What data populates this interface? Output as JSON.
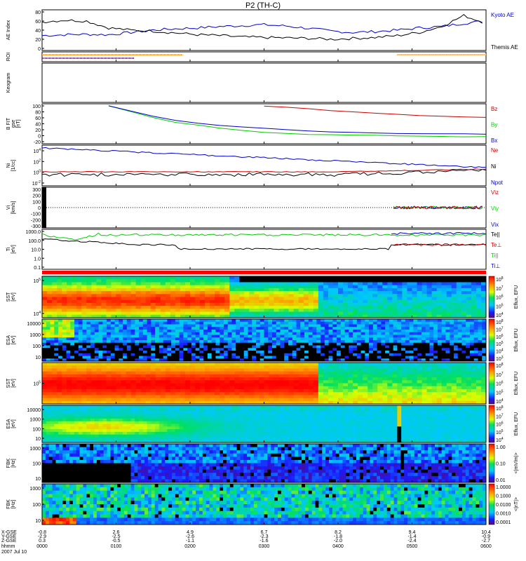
{
  "title": "P2 (TH-C)",
  "colors": {
    "blue": "#0000cc",
    "red": "#cc0000",
    "green": "#00cc00",
    "black": "#000000",
    "orange": "#ff8800",
    "purple": "#330066"
  },
  "chart_data": [
    {
      "type": "line",
      "panel": "ae",
      "ylabel": "AE Index",
      "yticks": [
        "80",
        "60",
        "40",
        "20",
        "0"
      ],
      "ylim": [
        0,
        80
      ],
      "x_hours": [
        0,
        0.3,
        0.6,
        0.9,
        1.2,
        1.5,
        1.8,
        2.1,
        2.4,
        2.7,
        3.0,
        3.3,
        3.6,
        3.9,
        4.2,
        4.5,
        4.8,
        5.1,
        5.4,
        5.7,
        6.0
      ],
      "series": [
        {
          "name": "Kyoto AE",
          "color": "blue",
          "values": [
            28,
            30,
            31,
            30,
            35,
            40,
            43,
            45,
            48,
            50,
            52,
            49,
            44,
            38,
            35,
            37,
            40,
            45,
            48,
            55,
            60
          ]
        },
        {
          "name": "Themis AE",
          "color": "black",
          "values": [
            58,
            62,
            60,
            45,
            40,
            38,
            34,
            30,
            28,
            25,
            24,
            23,
            22,
            20,
            22,
            24,
            28,
            35,
            48,
            72,
            55
          ]
        }
      ],
      "legend": [
        "Kyoto AE",
        "Themis AE"
      ]
    },
    {
      "type": "bar",
      "panel": "roi",
      "ylabel": "ROI",
      "segments": [
        {
          "color": "orange",
          "start": 0.0,
          "end": 1.9,
          "row": 0
        },
        {
          "color": "purple",
          "start": 0.0,
          "end": 1.25,
          "row": 1
        },
        {
          "color": "orange",
          "start": 4.8,
          "end": 6.0,
          "row": 0
        }
      ]
    },
    {
      "type": "line",
      "panel": "kgm",
      "ylabel": "Keogram",
      "series": []
    },
    {
      "type": "line",
      "panel": "bfit",
      "ylabel": "B FIT\ngse\n[nT]",
      "yticks": [
        "100",
        "80",
        "60",
        "40",
        "20",
        "0",
        "-20"
      ],
      "ylim": [
        -20,
        100
      ],
      "x_hours": [
        0.9,
        1.2,
        1.5,
        1.8,
        2.1,
        2.4,
        2.7,
        3.0,
        3.3,
        3.6,
        3.9,
        4.2,
        4.5,
        4.8,
        5.1,
        5.4,
        5.7,
        6.0
      ],
      "series": [
        {
          "name": "Bz",
          "color": "red",
          "values": [
            null,
            null,
            null,
            null,
            null,
            null,
            null,
            100,
            95,
            90,
            85,
            80,
            76,
            72,
            68,
            65,
            63,
            62
          ]
        },
        {
          "name": "By",
          "color": "green",
          "values": [
            100,
            80,
            60,
            45,
            35,
            25,
            18,
            12,
            8,
            5,
            3,
            2,
            1,
            0,
            -1,
            -2,
            -3,
            -4
          ]
        },
        {
          "name": "Bx",
          "color": "blue",
          "values": [
            100,
            82,
            65,
            52,
            42,
            35,
            29,
            24,
            20,
            16,
            13,
            11,
            9,
            8,
            7,
            6,
            6,
            5
          ]
        }
      ],
      "legend": [
        "Bz",
        "By",
        "Bx"
      ]
    },
    {
      "type": "line",
      "panel": "ni",
      "ylabel": "Ni\n[1/cc]",
      "ytick_labels": [
        "10^4",
        "10^2",
        "10^0",
        "10^-2"
      ],
      "series": [
        {
          "name": "Ne",
          "color": "red"
        },
        {
          "name": "Ni",
          "color": "blue"
        },
        {
          "name": "Npot",
          "color": "black"
        }
      ],
      "legend": [
        "Ne",
        "Ni",
        "Npot"
      ]
    },
    {
      "type": "line",
      "panel": "vi",
      "ylabel": "Vi\n[km/s]",
      "yticks": [
        "300",
        "200",
        "100",
        "0",
        "-100",
        "-200",
        "-300"
      ],
      "ylim": [
        -300,
        300
      ],
      "legend": [
        "Viz",
        "Viy",
        "Vix"
      ]
    },
    {
      "type": "line",
      "panel": "ti",
      "ylabel": "Ti\n[eV]",
      "yticks": [
        "1000.0",
        "100.0",
        "10.0",
        "1.0",
        "0.1"
      ],
      "legend": [
        "Te||",
        "Te⊥",
        "Ti||",
        "Ti⊥"
      ]
    },
    {
      "type": "heatmap",
      "panel": "sst1",
      "ylabel": "SST\n[eV]",
      "ytick_labels": [
        "10^5",
        "10^4"
      ],
      "colorbar_label": "Eflux, EFU",
      "colorbar_ticks": [
        "10^8",
        "10^7",
        "10^6",
        "10^5",
        "10^4"
      ]
    },
    {
      "type": "heatmap",
      "panel": "esa1",
      "ylabel": "ESA\n[eV]",
      "yticks": [
        "10000",
        "1000",
        "100",
        "10"
      ],
      "colorbar_label": "Eflux, EFU",
      "colorbar_ticks": [
        "10^8",
        "10^7",
        "10^6",
        "10^5",
        "10^4",
        "10^3"
      ]
    },
    {
      "type": "heatmap",
      "panel": "sst2",
      "ylabel": "SST\n[eV]",
      "ytick_labels": [
        "10^5"
      ],
      "colorbar_label": "Eflux, EFU",
      "colorbar_ticks": [
        "10^8",
        "10^7",
        "10^6",
        "10^5",
        "10^4"
      ]
    },
    {
      "type": "heatmap",
      "panel": "esa2",
      "ylabel": "ESA\n[eV]",
      "yticks": [
        "10000",
        "1000",
        "100",
        "10"
      ],
      "colorbar_label": "Eflux, EFU",
      "colorbar_ticks": [
        "10^8",
        "10^7",
        "10^6",
        "10^5",
        "10^4"
      ]
    },
    {
      "type": "heatmap",
      "panel": "fbk1",
      "ylabel": "FBK\n[Hz]",
      "yticks": [
        "1000",
        "100",
        "10"
      ],
      "colorbar_label": "<|mV/m|>",
      "colorbar_ticks": [
        "1.00",
        "0.10",
        "0.01"
      ]
    },
    {
      "type": "heatmap",
      "panel": "fbk2",
      "ylabel": "FBK\n[Hz]",
      "yticks": [
        "1000",
        "100",
        "10"
      ],
      "colorbar_label": "<|nT|>",
      "colorbar_ticks": [
        "1.0000",
        "0.1000",
        "0.0100",
        "0.0010",
        "0.0001"
      ]
    }
  ],
  "xaxis": {
    "row_labels": [
      "X-GSE",
      "Y-GSE",
      "Z-GSE",
      "hhmm",
      "2007 Jul 10"
    ],
    "columns": [
      {
        "x": "-0.8",
        "y": "-2.9",
        "z": "0.3",
        "t": "0000"
      },
      {
        "x": "2.6",
        "y": "-2.5",
        "z": "-0.5",
        "t": "0100"
      },
      {
        "x": "4.9",
        "y": "-2.6",
        "z": "-1.1",
        "t": "0200"
      },
      {
        "x": "6.7",
        "y": "-2.3",
        "z": "-1.6",
        "t": "0300"
      },
      {
        "x": "8.2",
        "y": "-1.8",
        "z": "-2.0",
        "t": "0400"
      },
      {
        "x": "9.4",
        "y": "-1.4",
        "z": "-2.4",
        "t": "0500"
      },
      {
        "x": "10.4",
        "y": "-0.9",
        "z": "-2.7",
        "t": "0600"
      }
    ]
  }
}
